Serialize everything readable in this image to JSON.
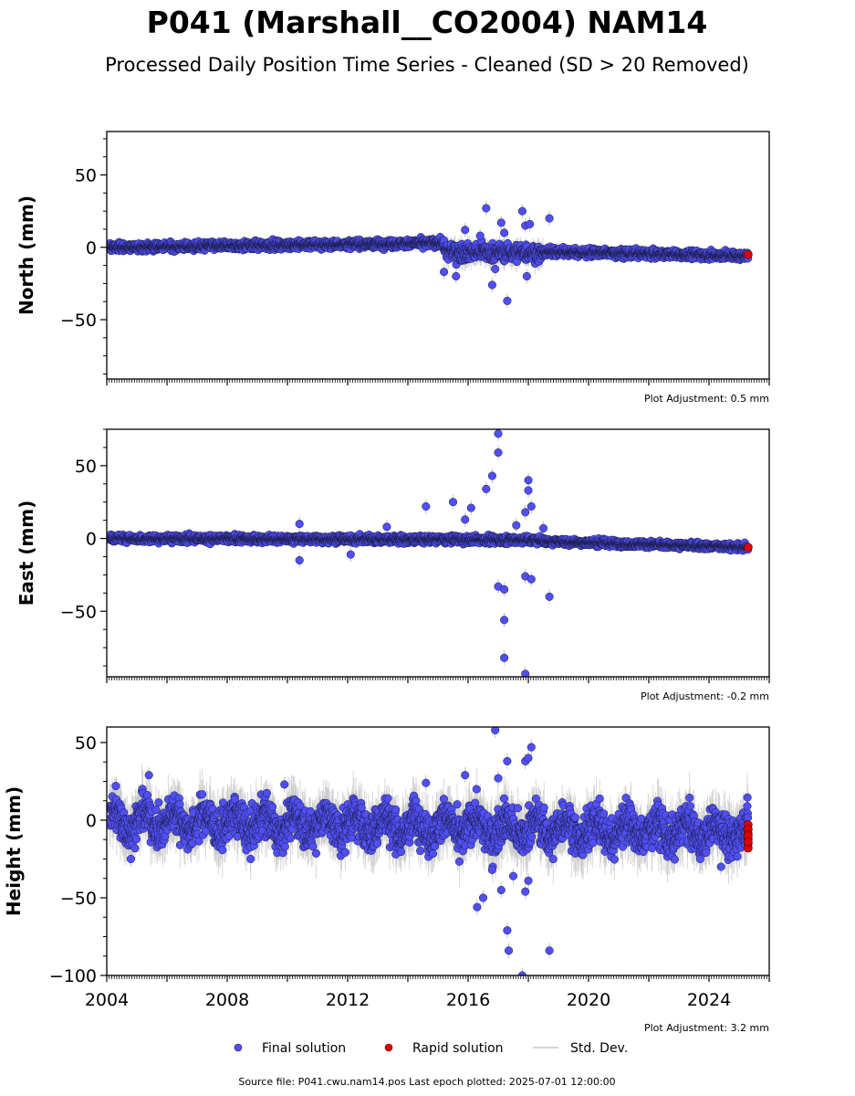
{
  "title": "P041 (Marshall__CO2004) NAM14",
  "subtitle": "Processed Daily Position Time Series - Cleaned (SD > 20 Removed)",
  "footer": "Source file: P041.cwu.nam14.pos  Last epoch plotted: 2025-07-01 12:00:00",
  "legend": {
    "final": "Final solution",
    "rapid": "Rapid solution",
    "stddev": "Std. Dev."
  },
  "colors": {
    "final": "#4f4ff2",
    "rapid": "#e00000",
    "stddev": "#c8c8c8",
    "outline": "#1a1a40"
  },
  "chart_data": [
    {
      "type": "scatter",
      "ylabel": "North (mm)",
      "ylim": [
        -91,
        80
      ],
      "xlim": [
        2004.0,
        2026.0
      ],
      "yticks": [
        "50",
        "0",
        "−50"
      ],
      "ytick_values": [
        50,
        0,
        -50
      ],
      "adjustment": "Plot Adjustment: 0.5 mm",
      "segments": [
        {
          "x0": 2004.1,
          "x1": 2015.2,
          "y0": 0,
          "y1": 3,
          "spread": 2.0
        },
        {
          "x0": 2015.2,
          "x1": 2018.5,
          "y0": -3,
          "y1": -4,
          "spread": 4.0
        },
        {
          "x0": 2018.5,
          "x1": 2025.3,
          "y0": -3,
          "y1": -6,
          "spread": 2.0
        }
      ],
      "outliers": [
        [
          2015.2,
          -17
        ],
        [
          2015.6,
          -20
        ],
        [
          2015.9,
          12
        ],
        [
          2016.6,
          27
        ],
        [
          2016.8,
          -26
        ],
        [
          2016.9,
          -15
        ],
        [
          2017.1,
          17
        ],
        [
          2017.3,
          -37
        ],
        [
          2017.8,
          25
        ],
        [
          2017.9,
          15
        ],
        [
          2017.95,
          -20
        ],
        [
          2018.05,
          16
        ],
        [
          2018.7,
          20
        ],
        [
          2017.2,
          10
        ],
        [
          2016.4,
          8
        ]
      ],
      "rapid": [
        [
          2025.3,
          -5
        ]
      ]
    },
    {
      "type": "scatter",
      "ylabel": "East (mm)",
      "ylim": [
        -95,
        75
      ],
      "xlim": [
        2004.0,
        2026.0
      ],
      "yticks": [
        "50",
        "0",
        "−50"
      ],
      "ytick_values": [
        50,
        0,
        -50
      ],
      "adjustment": "Plot Adjustment: -0.2 mm",
      "segments": [
        {
          "x0": 2004.1,
          "x1": 2018.5,
          "y0": 0,
          "y1": -1,
          "spread": 1.8
        },
        {
          "x0": 2018.5,
          "x1": 2025.3,
          "y0": -2,
          "y1": -6,
          "spread": 1.6
        }
      ],
      "outliers": [
        [
          2010.4,
          10
        ],
        [
          2010.4,
          -15
        ],
        [
          2012.1,
          -11
        ],
        [
          2013.3,
          8
        ],
        [
          2014.6,
          22
        ],
        [
          2015.5,
          25
        ],
        [
          2015.9,
          13
        ],
        [
          2016.1,
          21
        ],
        [
          2016.6,
          34
        ],
        [
          2016.8,
          43
        ],
        [
          2017.0,
          72
        ],
        [
          2017.0,
          59
        ],
        [
          2017.0,
          -33
        ],
        [
          2017.2,
          -35
        ],
        [
          2017.2,
          -56
        ],
        [
          2017.2,
          -82
        ],
        [
          2017.6,
          9
        ],
        [
          2017.9,
          -26
        ],
        [
          2017.9,
          18
        ],
        [
          2018.0,
          40
        ],
        [
          2018.0,
          33
        ],
        [
          2018.1,
          22
        ],
        [
          2018.1,
          -28
        ],
        [
          2018.5,
          7
        ],
        [
          2018.7,
          -40
        ],
        [
          2017.9,
          -93
        ]
      ],
      "rapid": [
        [
          2025.3,
          -6
        ]
      ]
    },
    {
      "type": "scatter",
      "ylabel": "Height (mm)",
      "ylim": [
        -100,
        60
      ],
      "xlim": [
        2004.0,
        2026.0
      ],
      "yticks": [
        "50",
        "0",
        "−50",
        "−100"
      ],
      "ytick_values": [
        50,
        0,
        -50,
        -100
      ],
      "xticks": [
        "2004",
        "2008",
        "2012",
        "2016",
        "2020",
        "2024"
      ],
      "xtick_values": [
        2004,
        2008,
        2012,
        2016,
        2020,
        2024
      ],
      "adjustment": "Plot Adjustment: 3.2 mm",
      "segments": [
        {
          "x0": 2004.1,
          "x1": 2025.3,
          "y0": 0,
          "y1": -8,
          "spread": 9.0,
          "seasonal": 6
        }
      ],
      "outliers": [
        [
          2004.3,
          22
        ],
        [
          2004.8,
          -25
        ],
        [
          2005.4,
          29
        ],
        [
          2009.9,
          23
        ],
        [
          2014.6,
          24
        ],
        [
          2015.9,
          29
        ],
        [
          2016.3,
          -56
        ],
        [
          2016.5,
          -50
        ],
        [
          2016.9,
          58
        ],
        [
          2017.0,
          27
        ],
        [
          2017.3,
          38
        ],
        [
          2017.3,
          -71
        ],
        [
          2017.35,
          -84
        ],
        [
          2017.9,
          38
        ],
        [
          2018.0,
          40
        ],
        [
          2018.1,
          47
        ],
        [
          2017.9,
          -46
        ],
        [
          2018.0,
          -39
        ],
        [
          2018.7,
          -84
        ],
        [
          2017.8,
          -100
        ],
        [
          2016.8,
          -32
        ],
        [
          2017.1,
          -45
        ],
        [
          2017.5,
          -36
        ],
        [
          2024.4,
          -30
        ]
      ],
      "rapid": [
        [
          2025.3,
          -3
        ],
        [
          2025.3,
          -6
        ],
        [
          2025.3,
          -9
        ],
        [
          2025.3,
          -12
        ],
        [
          2025.3,
          -15
        ],
        [
          2025.3,
          -18
        ],
        [
          2025.3,
          -10
        ],
        [
          2025.3,
          -14
        ]
      ]
    }
  ]
}
